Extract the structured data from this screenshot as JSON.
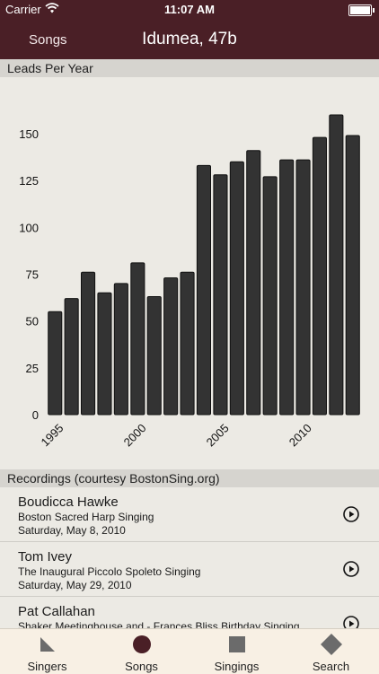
{
  "status_bar": {
    "carrier": "Carrier",
    "time": "11:07 AM",
    "battery_level": 1.0
  },
  "navbar": {
    "back_label": "Songs",
    "title": "Idumea, 47b"
  },
  "chart_section": {
    "header": "Leads Per Year"
  },
  "chart_data": {
    "type": "bar",
    "title": "",
    "xlabel": "",
    "ylabel": "",
    "ylim": [
      0,
      160
    ],
    "yticks": [
      0,
      25,
      50,
      75,
      100,
      125,
      150
    ],
    "xtick_labels": [
      "1995",
      "2000",
      "2005",
      "2010"
    ],
    "categories": [
      "1995",
      "1996",
      "1997",
      "1998",
      "1999",
      "2000",
      "2001",
      "2002",
      "2003",
      "2004",
      "2005",
      "2006",
      "2007",
      "2008",
      "2009",
      "2010",
      "2011",
      "2012",
      "2013"
    ],
    "values": [
      55,
      62,
      76,
      65,
      70,
      81,
      63,
      73,
      76,
      133,
      128,
      135,
      141,
      127,
      136,
      136,
      148,
      160,
      149
    ],
    "bar_color": "#333333",
    "grid": false,
    "legend": "none"
  },
  "recordings": {
    "header": "Recordings (courtesy BostonSing.org)",
    "items": [
      {
        "name": "Boudicca Hawke",
        "event": "Boston Sacred Harp Singing",
        "date": "Saturday, May 8, 2010"
      },
      {
        "name": "Tom Ivey",
        "event": "The Inaugural Piccolo Spoleto Singing",
        "date": "Saturday, May 29, 2010"
      },
      {
        "name": "Pat Callahan",
        "event": "Shaker Meetinghouse and - Frances Bliss Birthday Singing",
        "date": ""
      }
    ]
  },
  "tabs": [
    {
      "label": "Singers",
      "icon": "triangle-icon"
    },
    {
      "label": "Songs",
      "icon": "circle-icon",
      "selected": true
    },
    {
      "label": "Singings",
      "icon": "square-icon"
    },
    {
      "label": "Search",
      "icon": "diamond-icon"
    }
  ],
  "colors": {
    "brand": "#4a1f26",
    "background": "#eceae4",
    "section": "#d6d4cf",
    "tabbar": "#f8f0e4"
  }
}
